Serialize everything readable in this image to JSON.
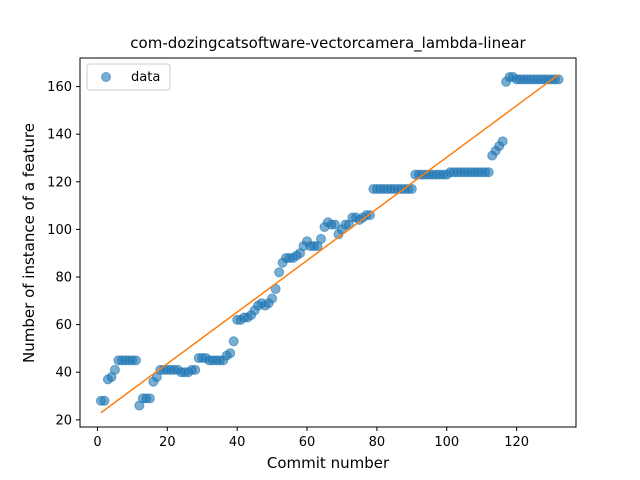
{
  "chart_data": {
    "type": "scatter",
    "title": "com-dozingcatsoftware-vectorcamera_lambda-linear",
    "xlabel": "Commit number",
    "ylabel": "Number of instance of a feature",
    "xlim": [
      -5,
      137
    ],
    "ylim": [
      17,
      172
    ],
    "xticks": [
      0,
      20,
      40,
      60,
      80,
      100,
      120
    ],
    "yticks": [
      20,
      40,
      60,
      80,
      100,
      120,
      140,
      160
    ],
    "grid": false,
    "legend_position": "upper-left",
    "series": [
      {
        "name": "data",
        "kind": "points",
        "color": "#1f77b4",
        "x": [
          1,
          2,
          3,
          4,
          5,
          6,
          7,
          8,
          9,
          10,
          11,
          12,
          13,
          14,
          15,
          16,
          17,
          18,
          19,
          20,
          21,
          22,
          23,
          24,
          25,
          26,
          27,
          28,
          29,
          30,
          31,
          32,
          33,
          34,
          35,
          36,
          37,
          38,
          39,
          40,
          41,
          42,
          43,
          44,
          45,
          46,
          47,
          48,
          49,
          50,
          51,
          52,
          53,
          54,
          55,
          56,
          57,
          58,
          59,
          60,
          61,
          62,
          63,
          64,
          65,
          66,
          67,
          68,
          69,
          70,
          71,
          72,
          73,
          74,
          75,
          76,
          77,
          78,
          79,
          80,
          81,
          82,
          83,
          84,
          85,
          86,
          87,
          88,
          89,
          90,
          91,
          92,
          93,
          94,
          95,
          96,
          97,
          98,
          99,
          100,
          101,
          102,
          103,
          104,
          105,
          106,
          107,
          108,
          109,
          110,
          111,
          112,
          113,
          114,
          115,
          116,
          117,
          118,
          119,
          120,
          121,
          122,
          123,
          124,
          125,
          126,
          127,
          128,
          129,
          130,
          131,
          132
        ],
        "y": [
          28,
          28,
          37,
          38,
          41,
          45,
          45,
          45,
          45,
          45,
          45,
          26,
          29,
          29,
          29,
          36,
          38,
          41,
          41,
          41,
          41,
          41,
          41,
          40,
          40,
          40,
          41,
          41,
          46,
          46,
          46,
          45,
          45,
          45,
          45,
          45,
          47,
          48,
          53,
          62,
          62,
          63,
          63,
          64,
          66,
          68,
          69,
          68,
          69,
          71,
          75,
          82,
          86,
          88,
          88,
          88,
          89,
          90,
          93,
          95,
          93,
          93,
          93,
          96,
          101,
          103,
          102,
          102,
          98,
          100,
          102,
          102,
          105,
          105,
          104,
          105,
          106,
          106,
          117,
          117,
          117,
          117,
          117,
          117,
          117,
          117,
          117,
          117,
          117,
          117,
          123,
          123,
          123,
          123,
          123,
          123,
          123,
          123,
          123,
          123,
          124,
          124,
          124,
          124,
          124,
          124,
          124,
          124,
          124,
          124,
          124,
          124,
          131,
          133,
          135,
          137,
          162,
          164,
          164,
          163,
          163,
          163,
          163,
          163,
          163,
          163,
          163,
          163,
          163,
          163,
          163,
          163
        ]
      },
      {
        "name": "",
        "kind": "line",
        "color": "#ff7f0e",
        "x": [
          1,
          132
        ],
        "y": [
          23,
          165
        ]
      }
    ]
  }
}
